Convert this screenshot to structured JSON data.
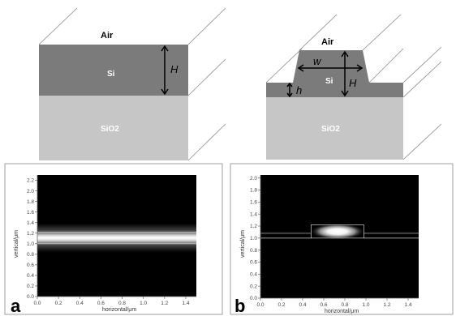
{
  "diagram_a": {
    "top_label": "Air",
    "core_label": "Si",
    "substrate_label": "SiO2",
    "height_label": "H"
  },
  "diagram_b": {
    "top_label": "Air",
    "core_label": "Si",
    "substrate_label": "SiO2",
    "width_label": "w",
    "height_label": "H",
    "slab_label": "h"
  },
  "plot_a": {
    "letter": "a",
    "xlabel": "horizontal/μm",
    "ylabel": "vertical/μm",
    "x_ticks": [
      "0.0",
      "0.2",
      "0.4",
      "0.6",
      "0.8",
      "1.0",
      "1.2",
      "1.4"
    ],
    "y_ticks": [
      "0.0",
      "0.2",
      "0.4",
      "0.6",
      "0.8",
      "1.0",
      "1.2",
      "1.4",
      "1.6",
      "1.8",
      "2.0",
      "2.2"
    ],
    "xlim": [
      0,
      1.5
    ],
    "ylim": [
      0,
      2.3
    ],
    "field": {
      "band_y_min": 1.0,
      "band_y_max": 1.22,
      "peak_y": 1.11
    }
  },
  "plot_b": {
    "letter": "b",
    "xlabel": "horizontal/μm",
    "ylabel": "vertical/μm",
    "x_ticks": [
      "0.0",
      "0.2",
      "0.4",
      "0.6",
      "0.8",
      "1.0",
      "1.2",
      "1.4"
    ],
    "y_ticks": [
      "0.0",
      "0.2",
      "0.4",
      "0.6",
      "0.8",
      "1.0",
      "1.2",
      "1.4",
      "1.6",
      "1.8",
      "2.0"
    ],
    "xlim": [
      0,
      1.5
    ],
    "ylim": [
      0,
      2.05
    ],
    "rib": {
      "x_min": 0.48,
      "x_max": 0.98,
      "y_min": 1.0,
      "y_max": 1.22
    },
    "slab": {
      "y_min": 1.0,
      "y_max": 1.08
    },
    "field": {
      "cx": 0.73,
      "cy": 1.11
    }
  }
}
